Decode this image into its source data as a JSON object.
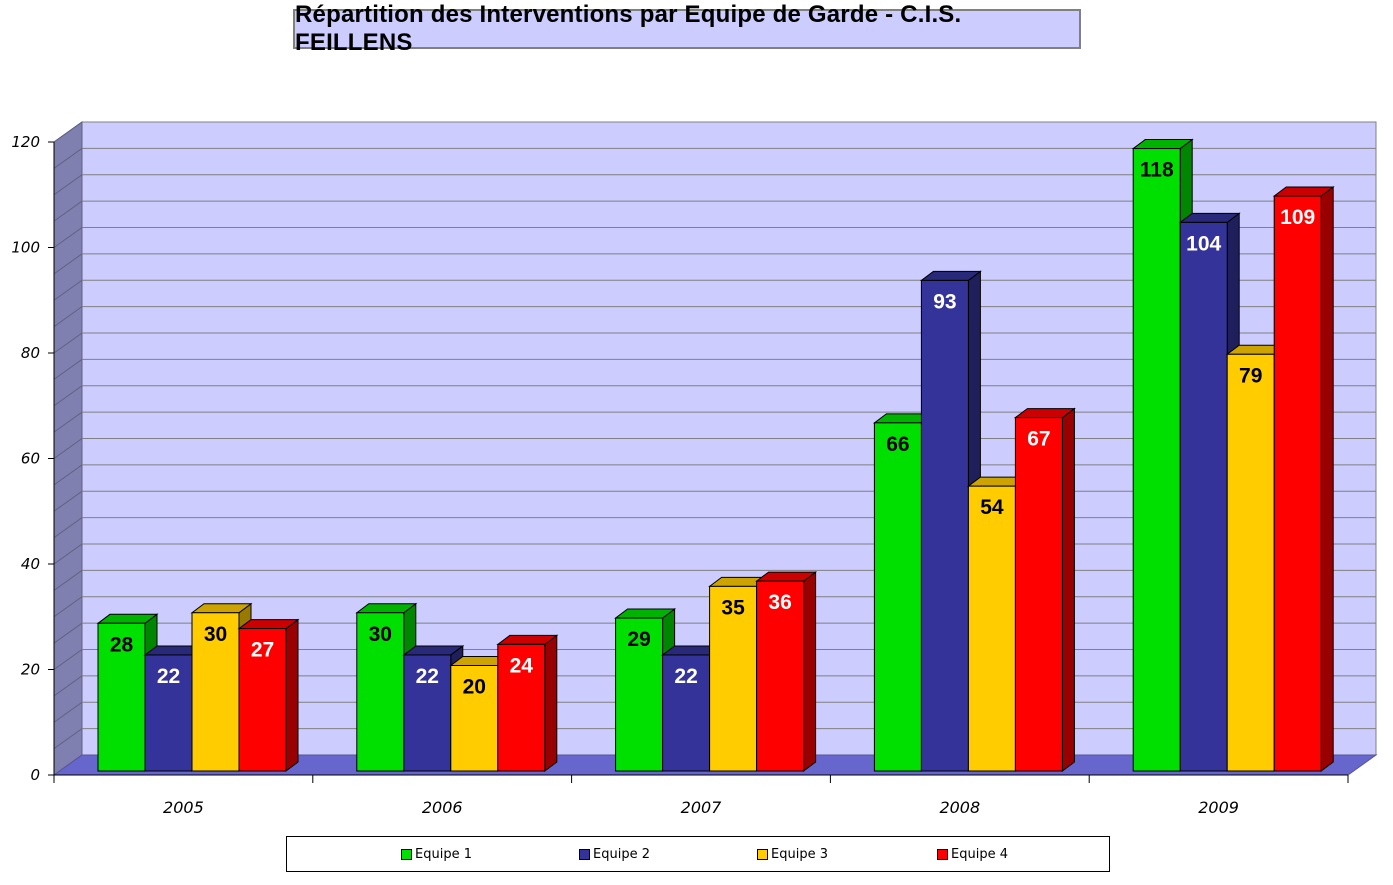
{
  "chart_data": {
    "type": "bar",
    "title": "Répartition des Interventions par Equipe de Garde - C.I.S. FEILLENS",
    "categories": [
      "2005",
      "2006",
      "2007",
      "2008",
      "2009"
    ],
    "series": [
      {
        "name": "Equipe 1",
        "color": "#00e000",
        "label_color": "#000000",
        "values": [
          28,
          30,
          29,
          66,
          118
        ]
      },
      {
        "name": "Equipe 2",
        "color": "#333399",
        "label_color": "#ffffff",
        "values": [
          22,
          22,
          22,
          93,
          104
        ]
      },
      {
        "name": "Equipe 3",
        "color": "#ffcc00",
        "label_color": "#000000",
        "values": [
          30,
          20,
          35,
          54,
          79
        ]
      },
      {
        "name": "Equipe 4",
        "color": "#ff0000",
        "label_color": "#ffffff",
        "values": [
          27,
          24,
          36,
          67,
          109
        ]
      }
    ],
    "ylim": [
      0,
      120
    ],
    "yticks": [
      "0",
      "20",
      "40",
      "60",
      "80",
      "100",
      "120"
    ],
    "grid": true,
    "legend_position": "bottom",
    "xlabel": "",
    "ylabel": ""
  }
}
